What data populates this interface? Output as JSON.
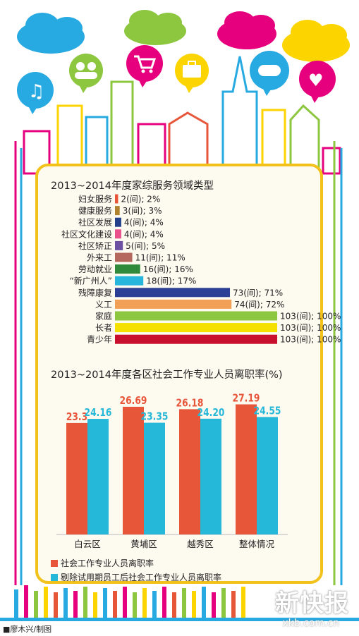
{
  "colors": {
    "panel_border": "#f2c21b",
    "series_a": "#e8563a",
    "series_b": "#26b8d8",
    "panel_bg": "#fdfaf0"
  },
  "decor": {
    "icons": [
      "music-note-icon",
      "people-icon",
      "shopping-cart-icon",
      "briefcase-icon",
      "gamepad-icon",
      "heart-icon"
    ]
  },
  "chart_data": [
    {
      "type": "bar",
      "orientation": "horizontal",
      "title": "2013~2014年度家综服务领域类型",
      "categories": [
        "妇女服务",
        "健康服务",
        "社区发展",
        "社区文化建设",
        "社区矫正",
        "外来工",
        "劳动就业",
        "“新广州人”",
        "残障康复",
        "义工",
        "家庭",
        "长者",
        "青少年"
      ],
      "values": [
        2,
        3,
        4,
        4,
        5,
        11,
        16,
        18,
        73,
        74,
        103,
        103,
        103
      ],
      "percents": [
        2,
        3,
        4,
        4,
        5,
        11,
        16,
        17,
        71,
        72,
        100,
        100,
        100
      ],
      "labels": [
        "2(间); 2%",
        "3(间); 3%",
        "4(间); 4%",
        "4(间); 4%",
        "5(间); 5%",
        "11(间); 11%",
        "16(间); 16%",
        "18(间); 17%",
        "73(间); 71%",
        "74(间); 72%",
        "103(间); 100%",
        "103(间); 100%",
        "103(间); 100%"
      ],
      "bar_colors": [
        "#e8563a",
        "#b0822e",
        "#243f8c",
        "#e9508c",
        "#6d4fa3",
        "#b5695e",
        "#2f8a3b",
        "#29b6dc",
        "#2a3f95",
        "#f2a055",
        "#8dc63f",
        "#f4e100",
        "#c8102e"
      ],
      "xlim": [
        0,
        103
      ]
    },
    {
      "type": "bar",
      "title": "2013~2014年度各区社会工作专业人员离职率(%)",
      "categories": [
        "白云区",
        "黄埔区",
        "越秀区",
        "整体情况"
      ],
      "series": [
        {
          "name": "社会工作专业人员离职率",
          "values": [
            23.3,
            26.69,
            26.18,
            27.19
          ],
          "labels": [
            "23.3",
            "26.69",
            "26.18",
            "27.19"
          ]
        },
        {
          "name": "剔除试用期员工后社会工作专业人员离职率",
          "values": [
            24.16,
            23.35,
            24.2,
            24.55
          ],
          "labels": [
            "24.16",
            "23.35",
            "24.20",
            "24.55"
          ]
        }
      ],
      "ylim": [
        0,
        28
      ],
      "legend": "bottom-left"
    }
  ],
  "footer": {
    "credit": "■廖木兴/制图",
    "logo": "新快报",
    "url": "xkb.com.cn"
  }
}
